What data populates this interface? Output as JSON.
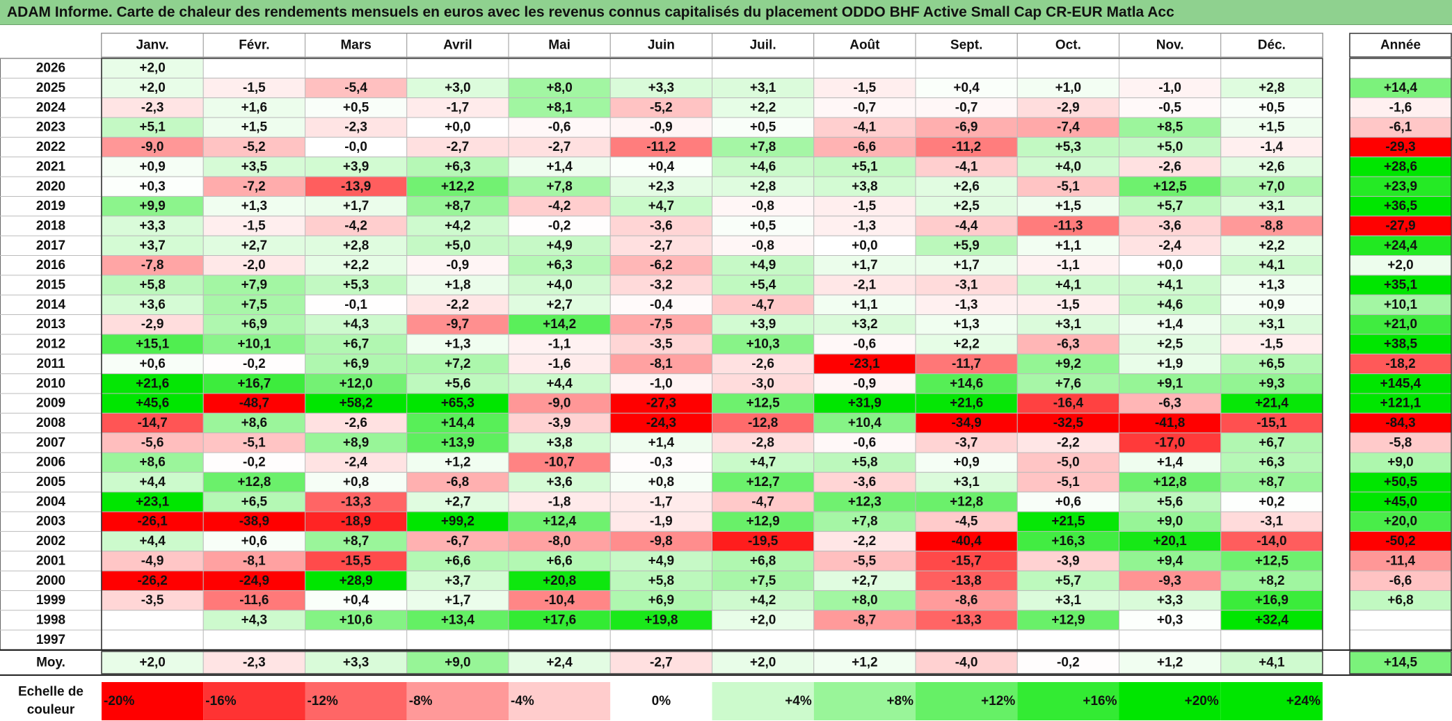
{
  "title": "ADAM Informe. Carte de chaleur des rendements mensuels en euros avec les revenus connus capitalisés du placement ODDO BHF Active Small Cap CR-EUR Matla Acc",
  "colors": {
    "positive": "#00e600",
    "negative": "#ff0000",
    "neutral": "#ffffff",
    "title_bg": "#8fd18f"
  },
  "chart_data": {
    "type": "heatmap",
    "months": [
      "Janv.",
      "Févr.",
      "Mars",
      "Avril",
      "Mai",
      "Juin",
      "Juil.",
      "Août",
      "Sept.",
      "Oct.",
      "Nov.",
      "Déc."
    ],
    "year_header": "Année",
    "rows": [
      {
        "year": "2026",
        "values": [
          "+2,0",
          "",
          "",
          "",
          "",
          "",
          "",
          "",
          "",
          "",
          "",
          ""
        ],
        "annual": ""
      },
      {
        "year": "2025",
        "values": [
          "+2,0",
          "-1,5",
          "-5,4",
          "+3,0",
          "+8,0",
          "+3,3",
          "+3,1",
          "-1,5",
          "+0,4",
          "+1,0",
          "-1,0",
          "+2,8"
        ],
        "annual": "+14,4"
      },
      {
        "year": "2024",
        "values": [
          "-2,3",
          "+1,6",
          "+0,5",
          "-1,7",
          "+8,1",
          "-5,2",
          "+2,2",
          "-0,7",
          "-0,7",
          "-2,9",
          "-0,5",
          "+0,5"
        ],
        "annual": "-1,6"
      },
      {
        "year": "2023",
        "values": [
          "+5,1",
          "+1,5",
          "-2,3",
          "+0,0",
          "-0,6",
          "-0,9",
          "+0,5",
          "-4,1",
          "-6,9",
          "-7,4",
          "+8,5",
          "+1,5"
        ],
        "annual": "-6,1"
      },
      {
        "year": "2022",
        "values": [
          "-9,0",
          "-5,2",
          "-0,0",
          "-2,7",
          "-2,7",
          "-11,2",
          "+7,8",
          "-6,6",
          "-11,2",
          "+5,3",
          "+5,0",
          "-1,4"
        ],
        "annual": "-29,3"
      },
      {
        "year": "2021",
        "values": [
          "+0,9",
          "+3,5",
          "+3,9",
          "+6,3",
          "+1,4",
          "+0,4",
          "+4,6",
          "+5,1",
          "-4,1",
          "+4,0",
          "-2,6",
          "+2,6"
        ],
        "annual": "+28,6"
      },
      {
        "year": "2020",
        "values": [
          "+0,3",
          "-7,2",
          "-13,9",
          "+12,2",
          "+7,8",
          "+2,3",
          "+2,8",
          "+3,8",
          "+2,6",
          "-5,1",
          "+12,5",
          "+7,0"
        ],
        "annual": "+23,9"
      },
      {
        "year": "2019",
        "values": [
          "+9,9",
          "+1,3",
          "+1,7",
          "+8,7",
          "-4,2",
          "+4,7",
          "-0,8",
          "-1,5",
          "+2,5",
          "+1,5",
          "+5,7",
          "+3,1"
        ],
        "annual": "+36,5"
      },
      {
        "year": "2018",
        "values": [
          "+3,3",
          "-1,5",
          "-4,2",
          "+4,2",
          "-0,2",
          "-3,6",
          "+0,5",
          "-1,3",
          "-4,4",
          "-11,3",
          "-3,6",
          "-8,8"
        ],
        "annual": "-27,9"
      },
      {
        "year": "2017",
        "values": [
          "+3,7",
          "+2,7",
          "+2,8",
          "+5,0",
          "+4,9",
          "-2,7",
          "-0,8",
          "+0,0",
          "+5,9",
          "+1,1",
          "-2,4",
          "+2,2"
        ],
        "annual": "+24,4"
      },
      {
        "year": "2016",
        "values": [
          "-7,8",
          "-2,0",
          "+2,2",
          "-0,9",
          "+6,3",
          "-6,2",
          "+4,9",
          "+1,7",
          "+1,7",
          "-1,1",
          "+0,0",
          "+4,1"
        ],
        "annual": "+2,0"
      },
      {
        "year": "2015",
        "values": [
          "+5,8",
          "+7,9",
          "+5,3",
          "+1,8",
          "+4,0",
          "-3,2",
          "+5,4",
          "-2,1",
          "-3,1",
          "+4,1",
          "+4,1",
          "+1,3"
        ],
        "annual": "+35,1"
      },
      {
        "year": "2014",
        "values": [
          "+3,6",
          "+7,5",
          "-0,1",
          "-2,2",
          "+2,7",
          "-0,4",
          "-4,7",
          "+1,1",
          "-1,3",
          "-1,5",
          "+4,6",
          "+0,9"
        ],
        "annual": "+10,1"
      },
      {
        "year": "2013",
        "values": [
          "-2,9",
          "+6,9",
          "+4,3",
          "-9,7",
          "+14,2",
          "-7,5",
          "+3,9",
          "+3,2",
          "+1,3",
          "+3,1",
          "+1,4",
          "+3,1"
        ],
        "annual": "+21,0"
      },
      {
        "year": "2012",
        "values": [
          "+15,1",
          "+10,1",
          "+6,7",
          "+1,3",
          "-1,1",
          "-3,5",
          "+10,3",
          "-0,6",
          "+2,2",
          "-6,3",
          "+2,5",
          "-1,5"
        ],
        "annual": "+38,5"
      },
      {
        "year": "2011",
        "values": [
          "+0,6",
          "-0,2",
          "+6,9",
          "+7,2",
          "-1,6",
          "-8,1",
          "-2,6",
          "-23,1",
          "-11,7",
          "+9,2",
          "+1,9",
          "+6,5"
        ],
        "annual": "-18,2"
      },
      {
        "year": "2010",
        "values": [
          "+21,6",
          "+16,7",
          "+12,0",
          "+5,6",
          "+4,4",
          "-1,0",
          "-3,0",
          "-0,9",
          "+14,6",
          "+7,6",
          "+9,1",
          "+9,3"
        ],
        "annual": "+145,4"
      },
      {
        "year": "2009",
        "values": [
          "+45,6",
          "-48,7",
          "+58,2",
          "+65,3",
          "-9,0",
          "-27,3",
          "+12,5",
          "+31,9",
          "+21,6",
          "-16,4",
          "-6,3",
          "+21,4"
        ],
        "annual": "+121,1"
      },
      {
        "year": "2008",
        "values": [
          "-14,7",
          "+8,6",
          "-2,6",
          "+14,4",
          "-3,9",
          "-24,3",
          "-12,8",
          "+10,4",
          "-34,9",
          "-32,5",
          "-41,8",
          "-15,1"
        ],
        "annual": "-84,3"
      },
      {
        "year": "2007",
        "values": [
          "-5,6",
          "-5,1",
          "+8,9",
          "+13,9",
          "+3,8",
          "+1,4",
          "-2,8",
          "-0,6",
          "-3,7",
          "-2,2",
          "-17,0",
          "+6,7"
        ],
        "annual": "-5,8"
      },
      {
        "year": "2006",
        "values": [
          "+8,6",
          "-0,2",
          "-2,4",
          "+1,2",
          "-10,7",
          "-0,3",
          "+4,7",
          "+5,8",
          "+0,9",
          "-5,0",
          "+1,4",
          "+6,3"
        ],
        "annual": "+9,0"
      },
      {
        "year": "2005",
        "values": [
          "+4,4",
          "+12,8",
          "+0,8",
          "-6,8",
          "+3,6",
          "+0,8",
          "+12,7",
          "-3,6",
          "+3,1",
          "-5,1",
          "+12,8",
          "+8,7"
        ],
        "annual": "+50,5"
      },
      {
        "year": "2004",
        "values": [
          "+23,1",
          "+6,5",
          "-13,3",
          "+2,7",
          "-1,8",
          "-1,7",
          "-4,7",
          "+12,3",
          "+12,8",
          "+0,6",
          "+5,6",
          "+0,2"
        ],
        "annual": "+45,0"
      },
      {
        "year": "2003",
        "values": [
          "-26,1",
          "-38,9",
          "-18,9",
          "+99,2",
          "+12,4",
          "-1,9",
          "+12,9",
          "+7,8",
          "-4,5",
          "+21,5",
          "+9,0",
          "-3,1"
        ],
        "annual": "+20,0"
      },
      {
        "year": "2002",
        "values": [
          "+4,4",
          "+0,6",
          "+8,7",
          "-6,7",
          "-8,0",
          "-9,8",
          "-19,5",
          "-2,2",
          "-40,4",
          "+16,3",
          "+20,1",
          "-14,0"
        ],
        "annual": "-50,2"
      },
      {
        "year": "2001",
        "values": [
          "-4,9",
          "-8,1",
          "-15,5",
          "+6,6",
          "+6,6",
          "+4,9",
          "+6,8",
          "-5,5",
          "-15,7",
          "-3,9",
          "+9,4",
          "+12,5"
        ],
        "annual": "-11,4"
      },
      {
        "year": "2000",
        "values": [
          "-26,2",
          "-24,9",
          "+28,9",
          "+3,7",
          "+20,8",
          "+5,8",
          "+7,5",
          "+2,7",
          "-13,8",
          "+5,7",
          "-9,3",
          "+8,2"
        ],
        "annual": "-6,6"
      },
      {
        "year": "1999",
        "values": [
          "-3,5",
          "-11,6",
          "+0,4",
          "+1,7",
          "-10,4",
          "+6,9",
          "+4,2",
          "+8,0",
          "-8,6",
          "+3,1",
          "+3,3",
          "+16,9"
        ],
        "annual": "+6,8"
      },
      {
        "year": "1998",
        "values": [
          "",
          "+4,3",
          "+10,6",
          "+13,4",
          "+17,6",
          "+19,8",
          "+2,0",
          "-8,7",
          "-13,3",
          "+12,9",
          "+0,3",
          "+32,4"
        ],
        "annual": ""
      },
      {
        "year": "1997",
        "values": [
          "",
          "",
          "",
          "",
          "",
          "",
          "",
          "",
          "",
          "",
          "",
          ""
        ],
        "annual": ""
      }
    ],
    "average": {
      "label": "Moy.",
      "values": [
        "+2,0",
        "-2,3",
        "+3,3",
        "+9,0",
        "+2,4",
        "-2,7",
        "+2,0",
        "+1,2",
        "-4,0",
        "-0,2",
        "+1,2",
        "+4,1"
      ],
      "annual": "+14,5"
    },
    "scale": {
      "label_line1": "Echelle de",
      "label_line2": "couleur",
      "items": [
        {
          "label": "-20%",
          "value": -20
        },
        {
          "label": "-16%",
          "value": -16
        },
        {
          "label": "-12%",
          "value": -12
        },
        {
          "label": "-8%",
          "value": -8
        },
        {
          "label": "-4%",
          "value": -4
        },
        {
          "label": "0%",
          "value": 0
        },
        {
          "label": "+4%",
          "value": 4
        },
        {
          "label": "+8%",
          "value": 8
        },
        {
          "label": "+12%",
          "value": 12
        },
        {
          "label": "+16%",
          "value": 16
        },
        {
          "label": "+20%",
          "value": 20
        },
        {
          "label": "+24%",
          "value": 24
        }
      ]
    }
  }
}
